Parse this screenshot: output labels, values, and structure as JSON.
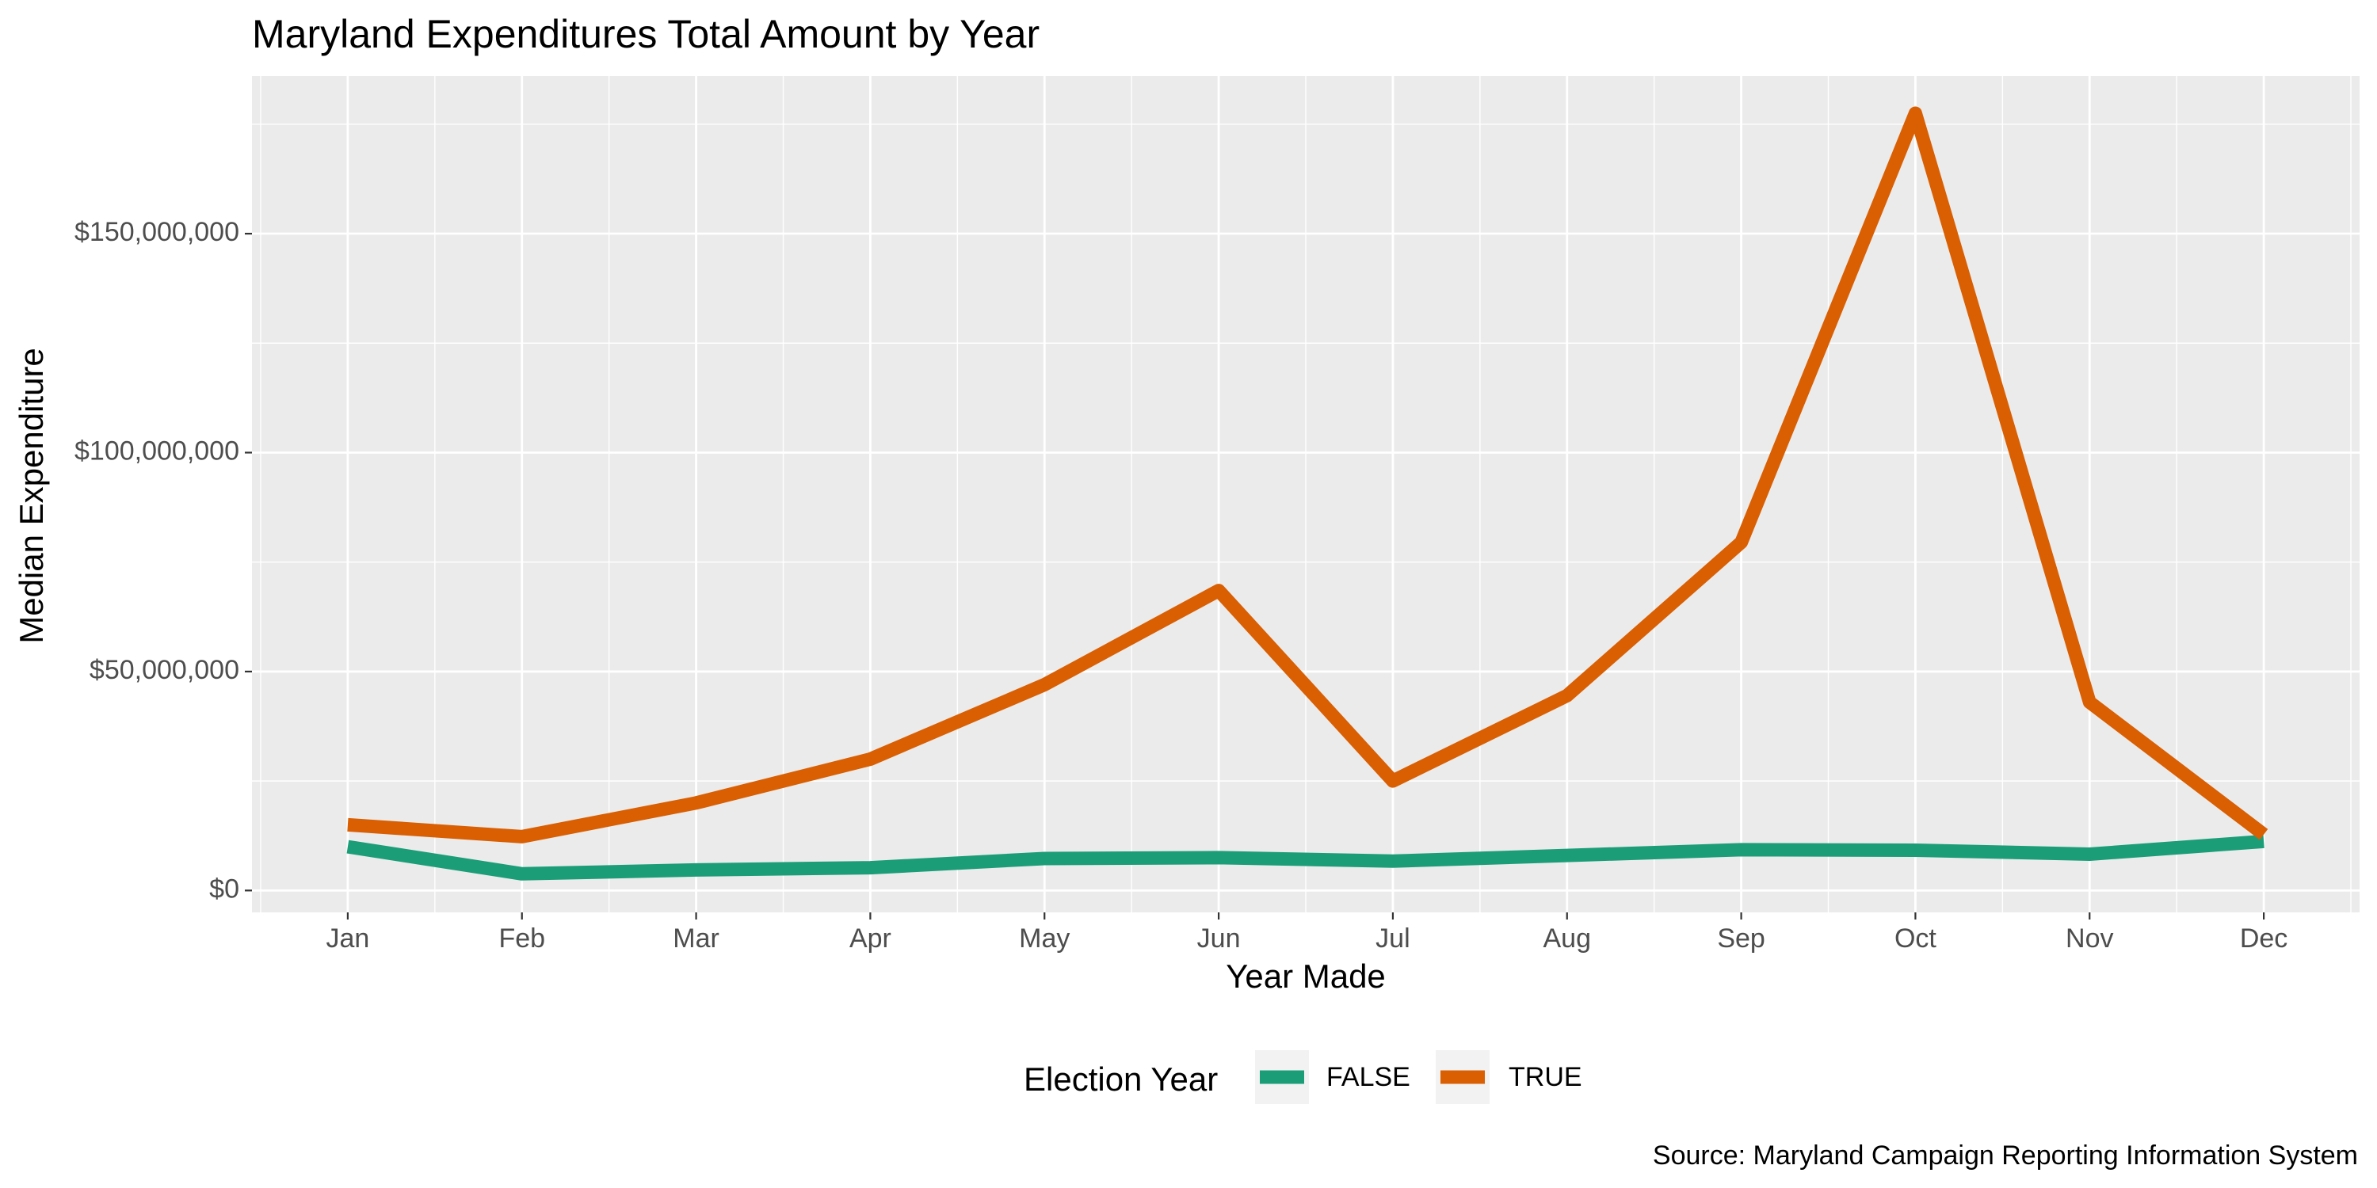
{
  "chart_data": {
    "type": "line",
    "title": "Maryland Expenditures Total Amount by Year",
    "xlabel": "Year Made",
    "ylabel": "Median Expenditure",
    "caption": "Source: Maryland Campaign Reporting Information System",
    "categories": [
      "Jan",
      "Feb",
      "Mar",
      "Apr",
      "May",
      "Jun",
      "Jul",
      "Aug",
      "Sep",
      "Oct",
      "Nov",
      "Dec"
    ],
    "y_ticks": [
      {
        "value": 0,
        "label": "$0"
      },
      {
        "value": 50000000,
        "label": "$50,000,000"
      },
      {
        "value": 100000000,
        "label": "$100,000,000"
      },
      {
        "value": 150000000,
        "label": "$150,000,000"
      }
    ],
    "ylim": [
      -5000000,
      186000000
    ],
    "grid": true,
    "legend": {
      "title": "Election Year",
      "position": "bottom"
    },
    "series": [
      {
        "name": "FALSE",
        "color": "#1B9E77",
        "values": [
          10000000,
          3800000,
          4700000,
          5200000,
          7300000,
          7500000,
          6700000,
          8000000,
          9300000,
          9200000,
          8300000,
          11200000
        ]
      },
      {
        "name": "TRUE",
        "color": "#D95F02",
        "values": [
          15000000,
          12300000,
          20000000,
          30000000,
          47000000,
          68500000,
          25000000,
          44500000,
          79500000,
          177500000,
          43000000,
          12800000
        ]
      }
    ]
  }
}
